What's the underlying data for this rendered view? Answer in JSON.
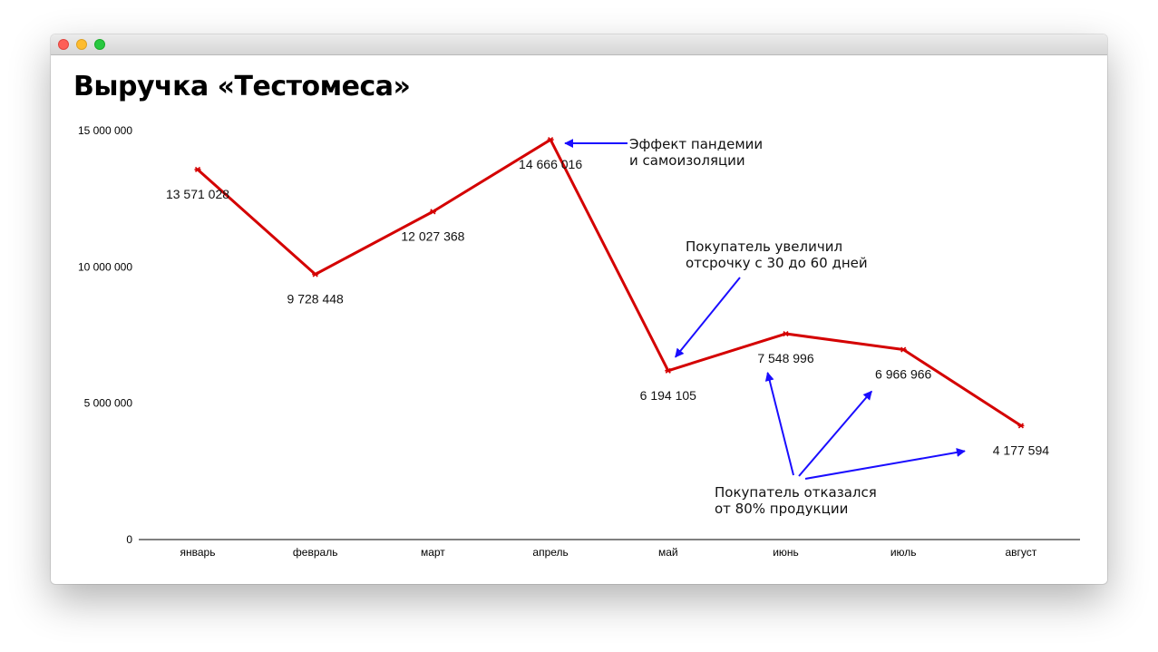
{
  "window": {
    "buttons": [
      "close",
      "minimize",
      "maximize"
    ]
  },
  "chart_data": {
    "type": "line",
    "title": "Выручка «Тестомеса»",
    "categories": [
      "январь",
      "февраль",
      "март",
      "апрель",
      "май",
      "июнь",
      "июль",
      "август"
    ],
    "values": [
      13571028,
      9728448,
      12027368,
      14666016,
      6194105,
      7548996,
      6966966,
      4177594
    ],
    "value_labels": [
      "13 571 028",
      "9 728 448",
      "12 027 368",
      "14 666 016",
      "6 194 105",
      "7 548 996",
      "6 966 966",
      "4 177 594"
    ],
    "ylim": [
      0,
      15000000
    ],
    "yticks": [
      0,
      5000000,
      10000000,
      15000000
    ],
    "ytick_labels": [
      "0",
      "5 000 000",
      "10 000 000",
      "15 000 000"
    ],
    "xlabel": "",
    "ylabel": "",
    "grid": false,
    "line_color": "#d40000",
    "annotation_color": "#1a0dff",
    "annotations": [
      {
        "lines": [
          "Эффект пандемии",
          "и самоизоляции"
        ],
        "targets": [
          "апрель"
        ]
      },
      {
        "lines": [
          "Покупатель увеличил",
          "отсрочку с 30 до 60 дней"
        ],
        "targets": [
          "май"
        ]
      },
      {
        "lines": [
          "Покупатель отказался",
          "от 80% продукции"
        ],
        "targets": [
          "июнь",
          "июль",
          "август"
        ]
      }
    ]
  }
}
